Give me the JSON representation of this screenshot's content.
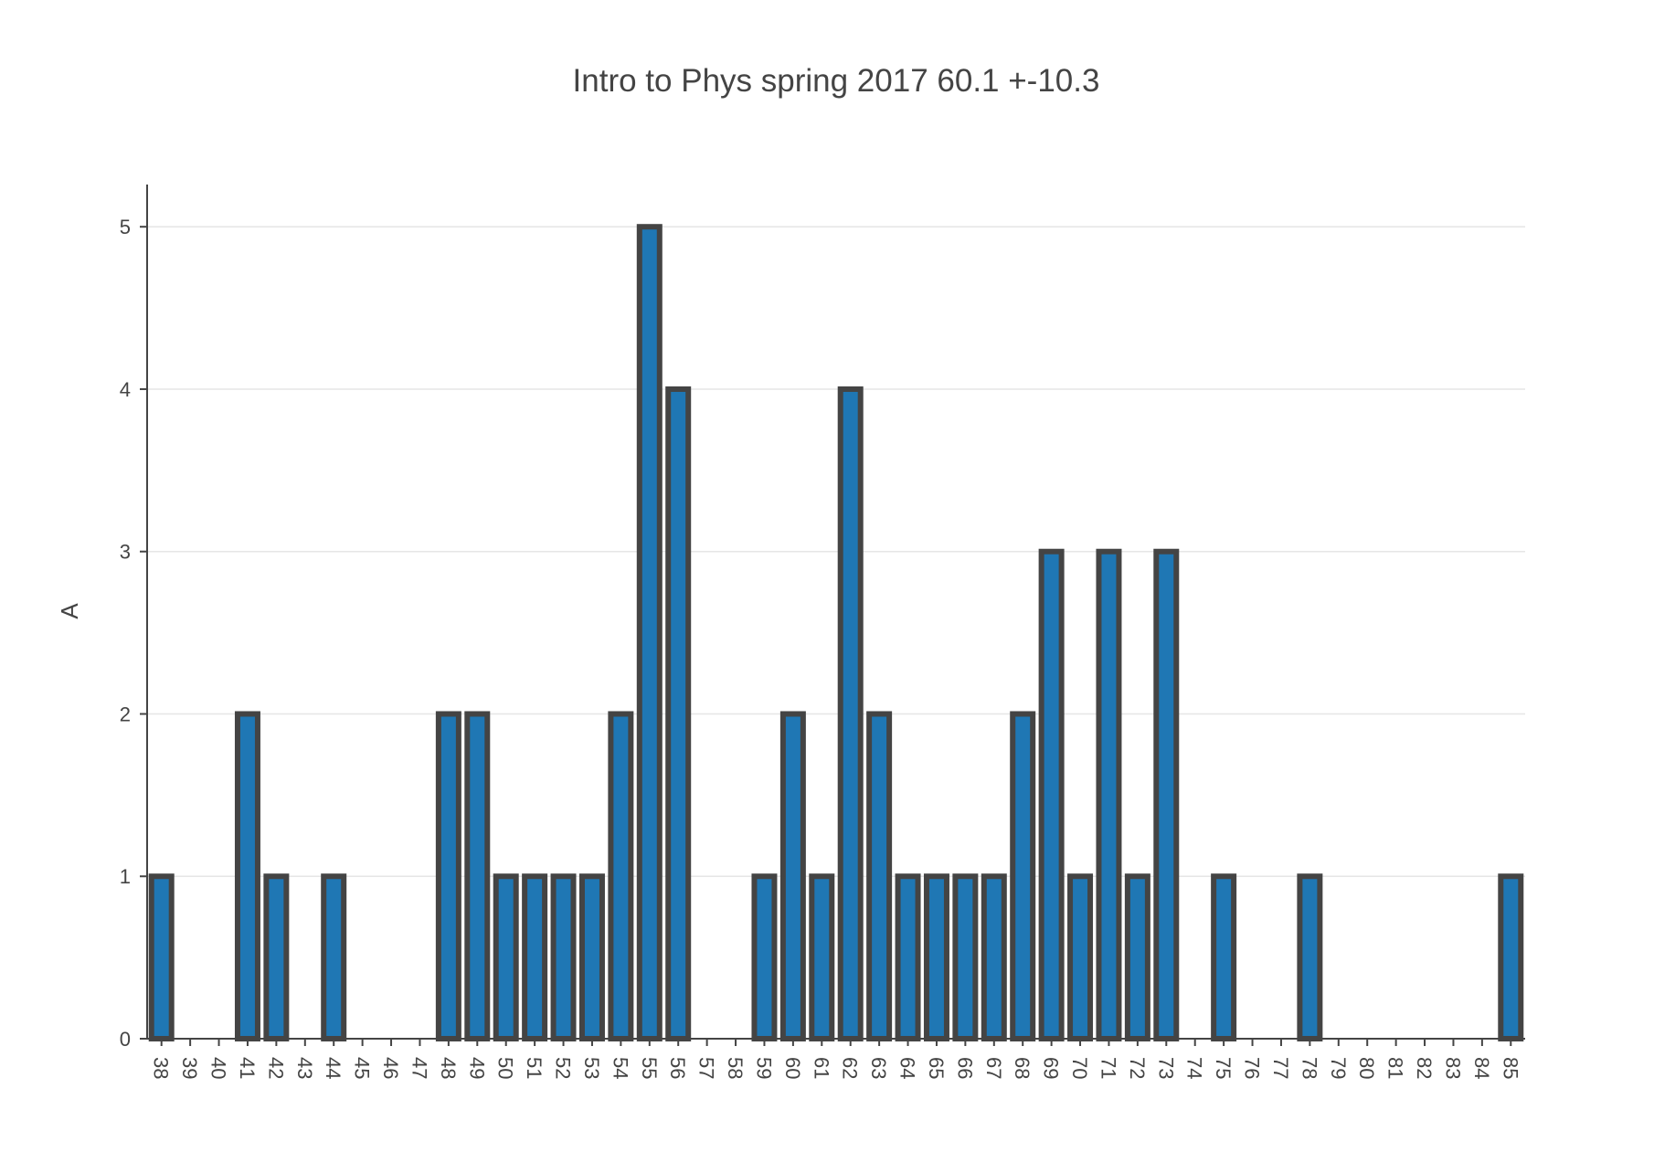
{
  "chart_data": {
    "type": "bar",
    "title": "Intro to Phys spring 2017 60.1 +-10.3",
    "xlabel": "",
    "ylabel": "A",
    "categories": [
      "38",
      "39",
      "40",
      "41",
      "42",
      "43",
      "44",
      "45",
      "46",
      "47",
      "48",
      "49",
      "50",
      "51",
      "52",
      "53",
      "54",
      "55",
      "56",
      "57",
      "58",
      "59",
      "60",
      "61",
      "62",
      "63",
      "64",
      "65",
      "66",
      "67",
      "68",
      "69",
      "70",
      "71",
      "72",
      "73",
      "74",
      "75",
      "76",
      "77",
      "78",
      "79",
      "80",
      "81",
      "82",
      "83",
      "84",
      "85"
    ],
    "values": [
      1,
      0,
      0,
      2,
      1,
      0,
      1,
      0,
      0,
      0,
      2,
      2,
      1,
      1,
      1,
      1,
      2,
      5,
      4,
      0,
      0,
      1,
      2,
      1,
      4,
      2,
      1,
      1,
      1,
      1,
      2,
      3,
      1,
      3,
      1,
      3,
      0,
      1,
      0,
      0,
      1,
      0,
      0,
      0,
      0,
      0,
      0,
      1
    ],
    "yticks": [
      0,
      1,
      2,
      3,
      4,
      5
    ],
    "ylim": [
      0,
      5.26
    ],
    "grid": true,
    "legend": false,
    "colors": {
      "bar_fill": "#1f77b4",
      "bar_outline": "#444444"
    }
  }
}
